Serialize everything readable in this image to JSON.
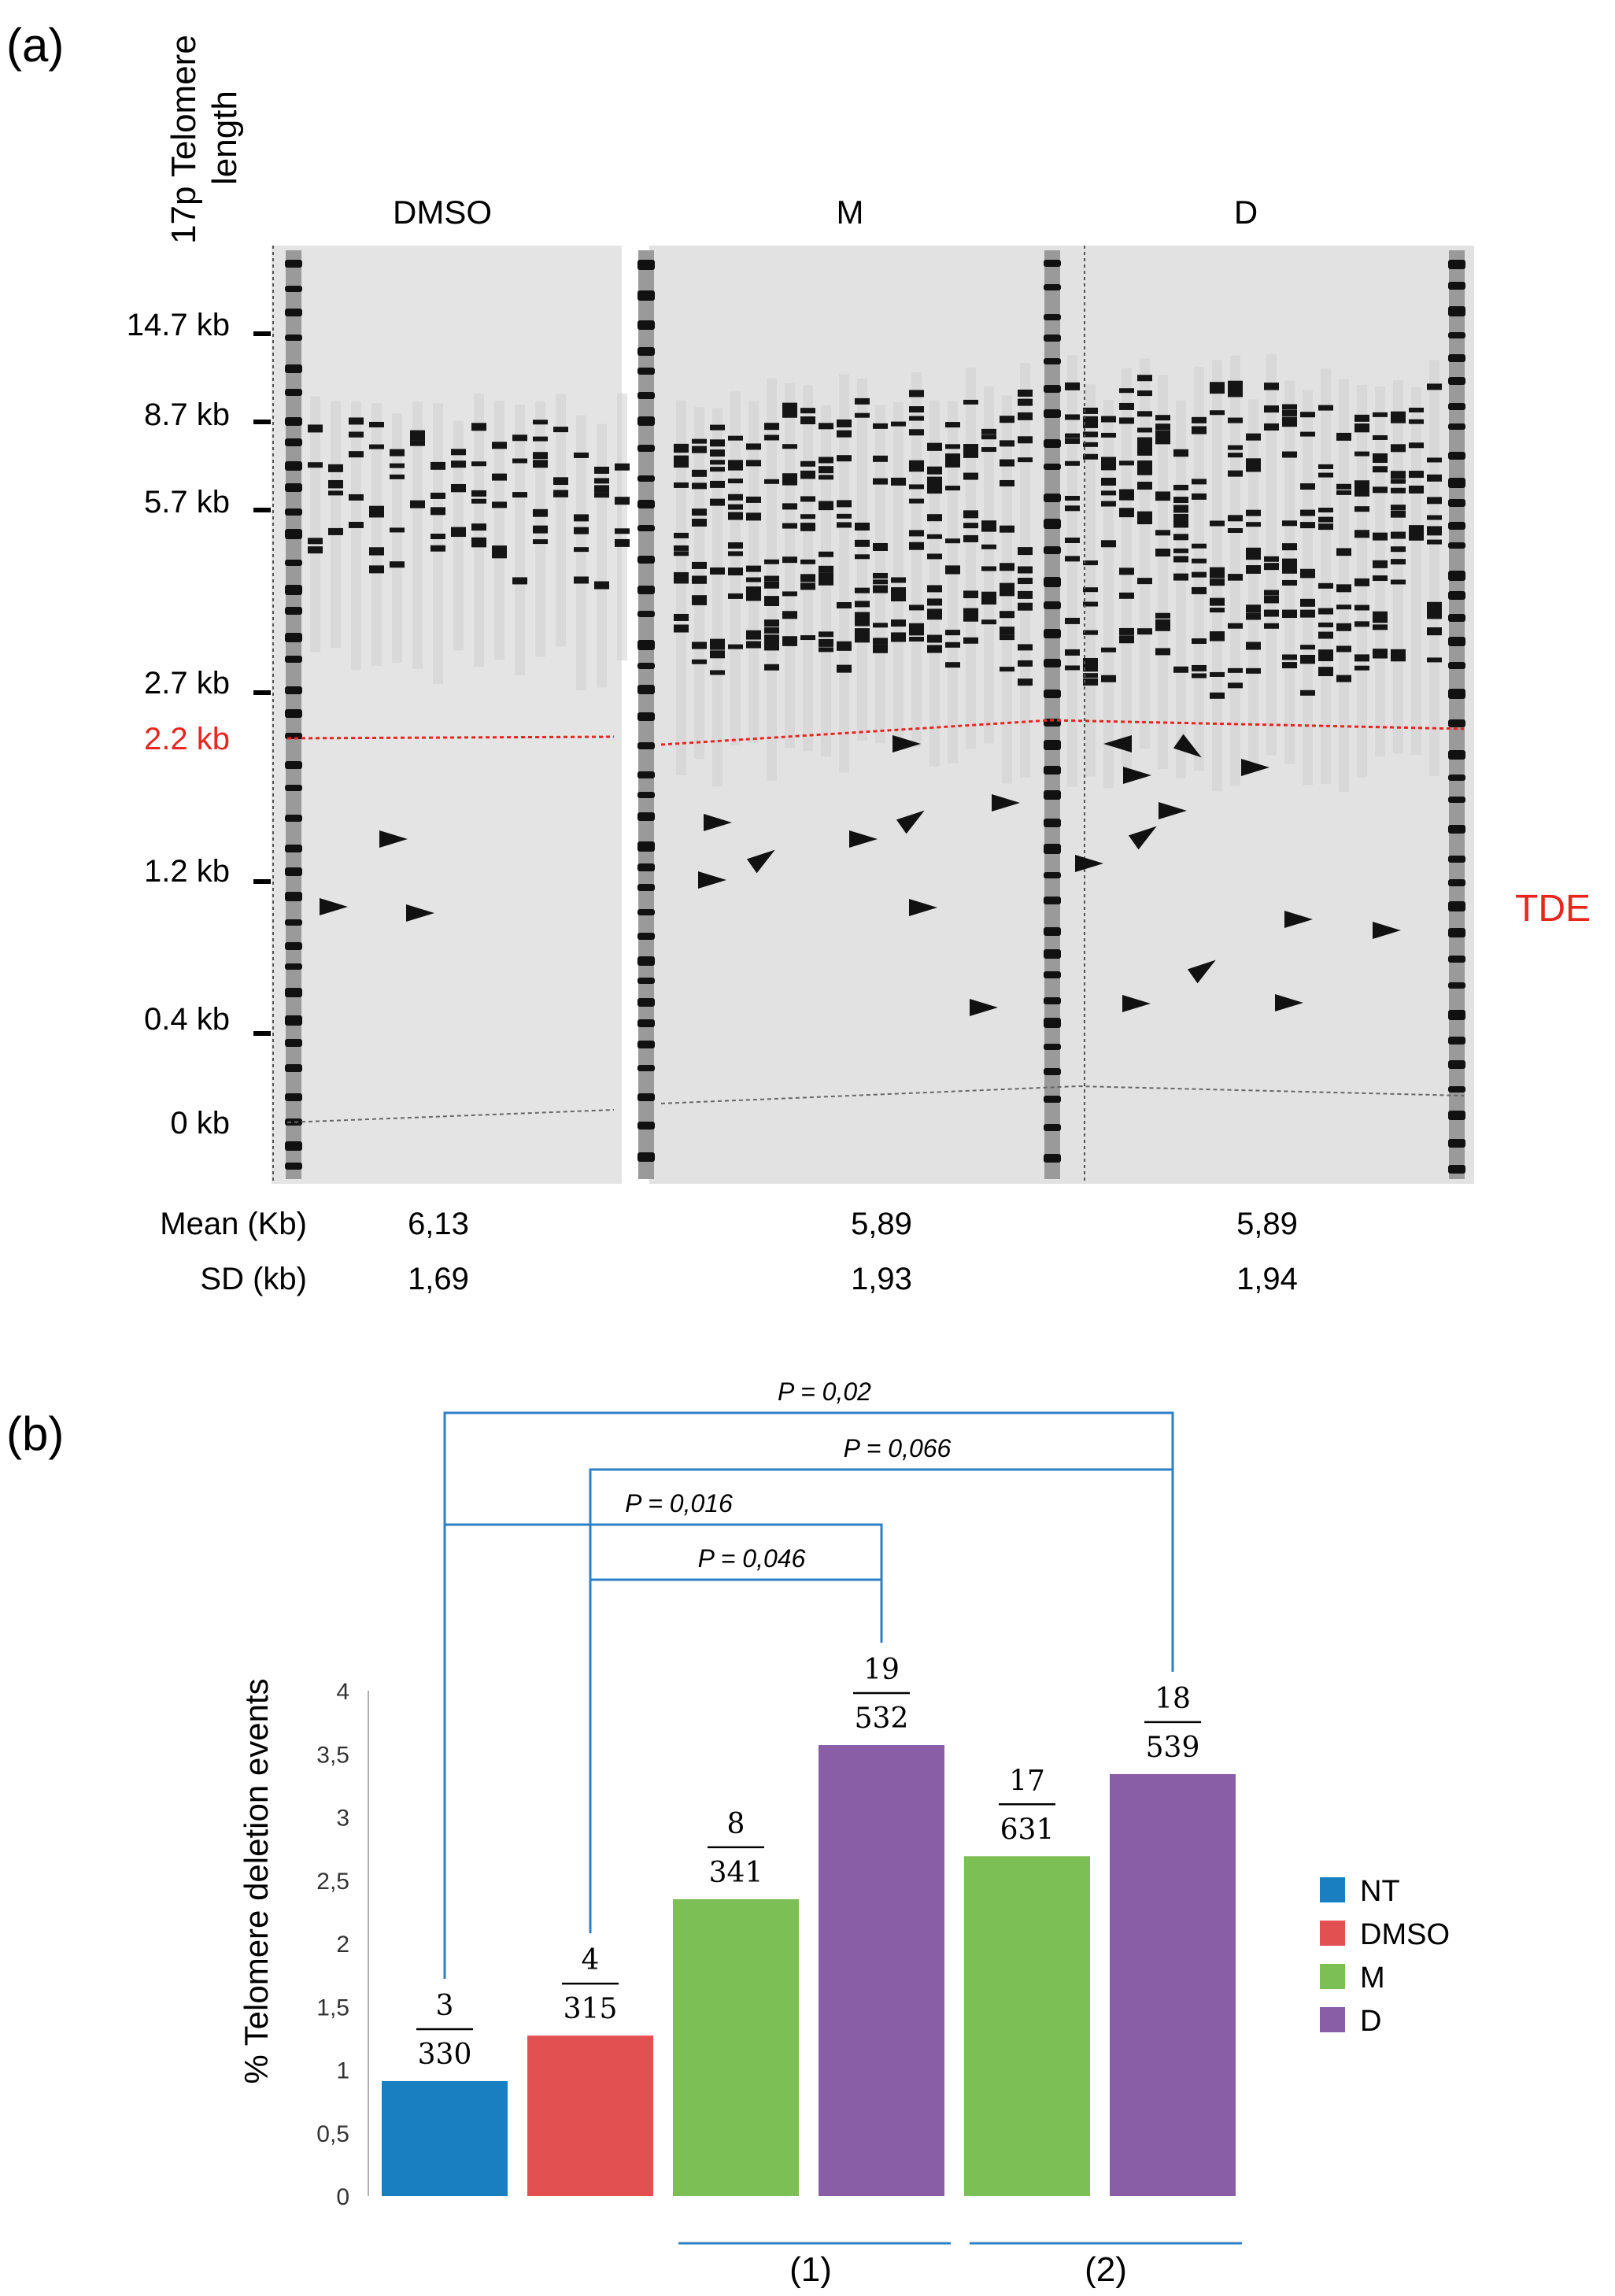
{
  "panel_a": {
    "label": "(a)",
    "ylabel_line1": "17p Telomere",
    "ylabel_line2": "length",
    "ladder": [
      {
        "label": "14.7 kb",
        "kb": 14.7
      },
      {
        "label": "8.7 kb",
        "kb": 8.7
      },
      {
        "label": "5.7 kb",
        "kb": 5.7
      },
      {
        "label": "2.7 kb",
        "kb": 2.7
      },
      {
        "label": "2.2 kb",
        "kb": 2.2,
        "color": "#e8261f"
      },
      {
        "label": "1.2 kb",
        "kb": 1.2
      },
      {
        "label": "0.4 kb",
        "kb": 0.4
      },
      {
        "label": "0 kb",
        "kb": 0
      }
    ],
    "groups": [
      {
        "name": "DMSO",
        "mean": "6,13",
        "sd": "1,69"
      },
      {
        "name": "M",
        "mean": "5,89",
        "sd": "1,93"
      },
      {
        "name": "D",
        "mean": "5,89",
        "sd": "1,94"
      }
    ],
    "mean_label": "Mean (Kb)",
    "sd_label": "SD (kb)",
    "tde_label": "TDE",
    "tde_color": "#e8261f"
  },
  "chart_data": {
    "type": "bar",
    "panel_label": "(b)",
    "ylabel": "% Telomere deletion events",
    "ylim": [
      0,
      4
    ],
    "yticks": [
      "0",
      "0,5",
      "1",
      "1,5",
      "2",
      "2,5",
      "3",
      "3,5",
      "4"
    ],
    "categories": [
      "NT",
      "DMSO",
      "M",
      "D",
      "M",
      "D"
    ],
    "values": [
      0.91,
      1.27,
      2.35,
      3.57,
      2.69,
      3.34
    ],
    "numerators": [
      "3",
      "4",
      "8",
      "19",
      "17",
      "18"
    ],
    "denominators": [
      "330",
      "315",
      "341",
      "532",
      "631",
      "539"
    ],
    "colors": [
      "#1a7fc1",
      "#e35051",
      "#7cbf55",
      "#8a5ea6",
      "#7cbf55",
      "#8a5ea6"
    ],
    "group_labels": [
      "(1)",
      "(2)"
    ],
    "legend": [
      {
        "name": "NT",
        "color": "#1a7fc1"
      },
      {
        "name": "DMSO",
        "color": "#e35051"
      },
      {
        "name": "M",
        "color": "#7cbf55"
      },
      {
        "name": "D",
        "color": "#8a5ea6"
      }
    ],
    "legend_position": "right",
    "grid": false,
    "comparisons": [
      {
        "label": "P = 0,02",
        "from": 0,
        "to": 5
      },
      {
        "label": "P = 0,066",
        "from": 1,
        "to": 5
      },
      {
        "label": "P = 0,016",
        "from": 0,
        "to": 3
      },
      {
        "label": "P = 0,046",
        "from": 1,
        "to": 3
      }
    ],
    "bracket_color": "#2f7fc4"
  }
}
